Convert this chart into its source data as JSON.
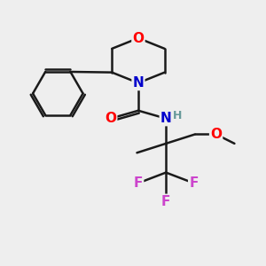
{
  "bg_color": "#eeeeee",
  "bond_color": "#1a1a1a",
  "bond_width": 1.8,
  "atom_colors": {
    "O": "#ff0000",
    "N": "#0000cc",
    "F": "#cc44cc",
    "H": "#669999",
    "C": "#1a1a1a"
  },
  "font_size_atom": 11,
  "font_size_small": 9,
  "xlim": [
    0,
    10
  ],
  "ylim": [
    0,
    10
  ]
}
